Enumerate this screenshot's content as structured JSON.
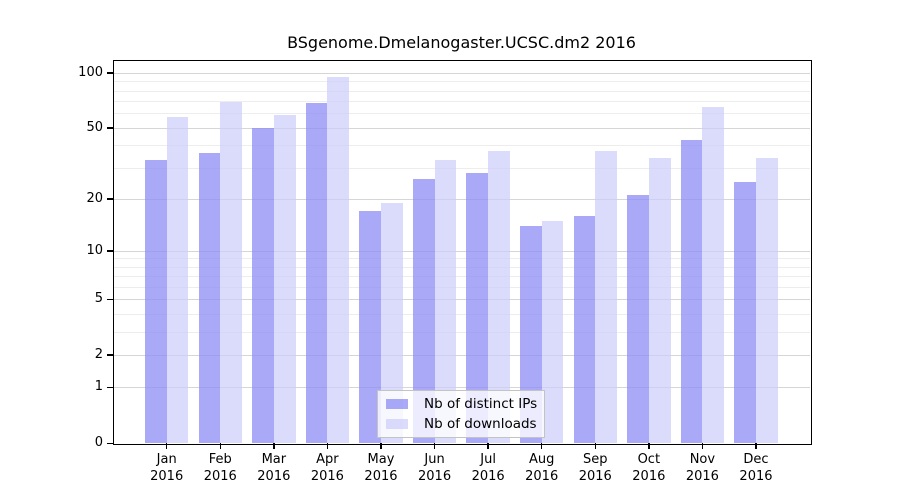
{
  "chart_data": {
    "type": "bar",
    "title": "BSgenome.Dmelanogaster.UCSC.dm2 2016",
    "x_months": [
      "Jan",
      "Feb",
      "Mar",
      "Apr",
      "May",
      "Jun",
      "Jul",
      "Aug",
      "Sep",
      "Oct",
      "Nov",
      "Dec"
    ],
    "x_year": "2016",
    "y_scale": "log1p",
    "ylim": [
      0,
      100
    ],
    "yticks": [
      100,
      50,
      20,
      10,
      5,
      2,
      1,
      0
    ],
    "y_minor_gridlines": [
      3,
      4,
      6,
      7,
      8,
      9,
      30,
      40,
      60,
      70,
      80,
      90
    ],
    "grid": true,
    "legend_position": "inside-bottom-center",
    "series": [
      {
        "name": "Nb of distinct IPs",
        "color": "#8c8cf5",
        "alpha": 0.75,
        "values": [
          33,
          36,
          50,
          68,
          17,
          26,
          28,
          14,
          16,
          21,
          43,
          25
        ]
      },
      {
        "name": "Nb of downloads",
        "color": "#ccccfa",
        "alpha": 0.7,
        "values": [
          57,
          69,
          59,
          95,
          19,
          33,
          37,
          15,
          37,
          34,
          65,
          34
        ]
      }
    ]
  },
  "colors": {
    "grid_major": "#d6d6d6",
    "grid_minor": "#ededed",
    "axis": "#000000",
    "background": "#ffffff"
  }
}
